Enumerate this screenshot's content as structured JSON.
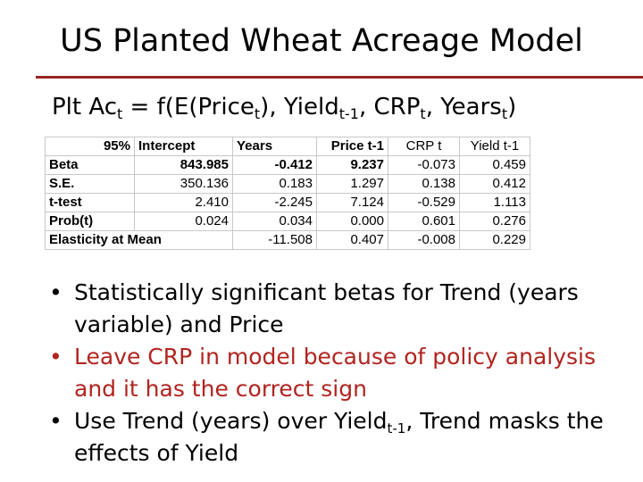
{
  "slide": {
    "title": "US Planted Wheat Acreage Model",
    "rule_color": "#9a2424"
  },
  "formula": {
    "part1": "Plt Ac",
    "sub1": "t",
    "part2": " = f(E(Price",
    "sub2": "t",
    "part3": "), Yield",
    "sub3": "t-1",
    "part4": ", CRP",
    "sub4": "t",
    "part5": ", Years",
    "sub5": "t",
    "part6": ")"
  },
  "table": {
    "headers": [
      "95%",
      "Intercept",
      "Years",
      "Price t-1",
      "CRP t",
      "Yield t-1"
    ],
    "rows": [
      {
        "label": "Beta",
        "values": [
          "843.985",
          "-0.412",
          "9.237",
          "-0.073",
          "0.459"
        ]
      },
      {
        "label": "S.E.",
        "values": [
          "350.136",
          "0.183",
          "1.297",
          "0.138",
          "0.412"
        ]
      },
      {
        "label": "t-test",
        "values": [
          "2.410",
          "-2.245",
          "7.124",
          "-0.529",
          "1.113"
        ]
      },
      {
        "label": "Prob(t)",
        "values": [
          "0.024",
          "0.034",
          "0.000",
          "0.601",
          "0.276"
        ]
      },
      {
        "label": "Elasticity at Mean",
        "values": [
          "",
          "-11.508",
          "0.407",
          "-0.008",
          "0.229"
        ]
      }
    ]
  },
  "bullets": {
    "b1": "Statistically significant betas for Trend (years variable) and Price",
    "b2": "Leave CRP in model because of policy analysis and it has the correct sign",
    "b3_part1": "Use Trend (years) over Yield",
    "b3_sub": "t-1",
    "b3_part2": ", Trend masks the effects of Yield",
    "marker": "•",
    "colors": {
      "b2": "#b1241f"
    }
  }
}
